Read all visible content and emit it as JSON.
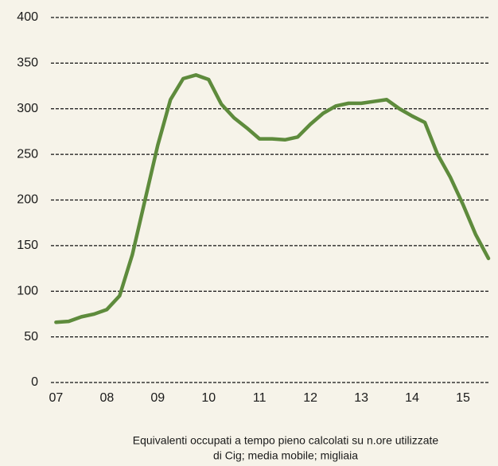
{
  "chart_data": {
    "type": "line",
    "x": [
      7.0,
      7.25,
      7.5,
      7.75,
      8.0,
      8.25,
      8.5,
      8.75,
      9.0,
      9.25,
      9.5,
      9.75,
      10.0,
      10.25,
      10.5,
      10.75,
      11.0,
      11.25,
      11.5,
      11.75,
      12.0,
      12.25,
      12.5,
      12.75,
      13.0,
      13.25,
      13.5,
      13.75,
      14.0,
      14.25,
      14.5,
      14.75,
      15.0,
      15.25,
      15.5
    ],
    "series": [
      {
        "color": "#5e8b3c",
        "values": [
          66,
          67,
          72,
          75,
          80,
          95,
          140,
          200,
          260,
          310,
          333,
          337,
          332,
          305,
          290,
          279,
          267,
          267,
          266,
          269,
          283,
          295,
          303,
          306,
          306,
          308,
          310,
          300,
          292,
          285,
          250,
          225,
          195,
          162,
          136
        ]
      }
    ],
    "xlim": [
      6.9,
      15.5
    ],
    "xticks": [
      {
        "value": 7,
        "label": "07"
      },
      {
        "value": 8,
        "label": "08"
      },
      {
        "value": 9,
        "label": "09"
      },
      {
        "value": 10,
        "label": "10"
      },
      {
        "value": 11,
        "label": "11"
      },
      {
        "value": 12,
        "label": "12"
      },
      {
        "value": 13,
        "label": "13"
      },
      {
        "value": 14,
        "label": "14"
      },
      {
        "value": 15,
        "label": "15"
      }
    ],
    "ylim": [
      0,
      400
    ],
    "yticks": [
      0,
      50,
      100,
      150,
      200,
      250,
      300,
      350,
      400
    ],
    "grid": true,
    "caption": [
      "Equivalenti occupati a tempo pieno calcolati su n.ore utilizzate",
      "di Cig; media mobile; migliaia"
    ]
  }
}
